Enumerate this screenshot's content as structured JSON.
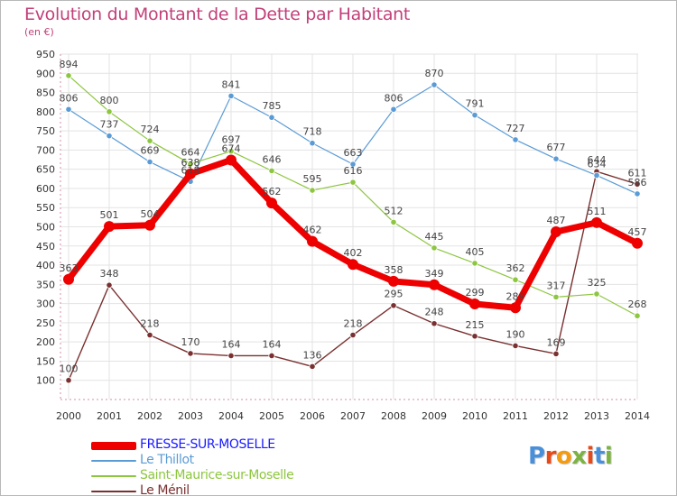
{
  "title": "Evolution du Montant de la Dette par Habitant",
  "subtitle": "(en €)",
  "logo": {
    "text": "Proxiti",
    "letters": [
      {
        "ch": "P",
        "color": "#4a90d9"
      },
      {
        "ch": "r",
        "color": "#e64a19"
      },
      {
        "ch": "o",
        "color": "#f39c12"
      },
      {
        "ch": "x",
        "color": "#7cb342"
      },
      {
        "ch": "i",
        "color": "#e64a19"
      },
      {
        "ch": "t",
        "color": "#4a90d9"
      },
      {
        "ch": "i",
        "color": "#7cb342"
      }
    ]
  },
  "chart_data": {
    "type": "line",
    "x": [
      2000,
      2001,
      2002,
      2003,
      2004,
      2005,
      2006,
      2007,
      2008,
      2009,
      2010,
      2011,
      2012,
      2013,
      2014
    ],
    "ylim": [
      50,
      950
    ],
    "yticks": [
      100,
      150,
      200,
      250,
      300,
      350,
      400,
      450,
      500,
      550,
      600,
      650,
      700,
      750,
      800,
      850,
      900,
      950
    ],
    "grid": true,
    "legend_position": "bottom-left",
    "series": [
      {
        "name": "FRESSE-SUR-MOSELLE",
        "color": "#ee0000",
        "label_color": "#1a1aff",
        "values": [
          363,
          501,
          504,
          638,
          674,
          562,
          462,
          402,
          358,
          349,
          299,
          289,
          487,
          511,
          457
        ],
        "data_labels": [
          "363",
          "501",
          "504",
          "638",
          "674",
          "562",
          "462",
          "402",
          "358",
          "349",
          "299",
          "289",
          "487",
          "511",
          "457"
        ]
      },
      {
        "name": "Le Thillot",
        "color": "#5b9bd5",
        "label_color": "#5b9bd5",
        "values": [
          806,
          737,
          669,
          618,
          841,
          785,
          718,
          663,
          806,
          870,
          791,
          727,
          677,
          634,
          586
        ],
        "data_labels": [
          "806",
          "737",
          "669",
          "618",
          "841",
          "785",
          "718",
          "663",
          "806",
          "870",
          "791",
          "727",
          "677",
          "634",
          "586"
        ]
      },
      {
        "name": "Saint-Maurice-sur-Moselle",
        "color": "#8dc63f",
        "label_color": "#8dc63f",
        "values": [
          894,
          800,
          724,
          664,
          697,
          646,
          595,
          616,
          512,
          445,
          405,
          362,
          317,
          325,
          268
        ],
        "data_labels": [
          "894",
          "800",
          "724",
          "664",
          "697",
          "646",
          "595",
          "616",
          "512",
          "445",
          "405",
          "362",
          "317",
          "325",
          "268"
        ]
      },
      {
        "name": "Le Ménil",
        "color": "#7a3030",
        "label_color": "#7a3030",
        "values": [
          100,
          348,
          218,
          170,
          164,
          164,
          136,
          218,
          295,
          248,
          215,
          190,
          169,
          644,
          611
        ],
        "data_labels": [
          "100",
          "348",
          "218",
          "170",
          "164",
          "164",
          "136",
          "218",
          "295",
          "248",
          "215",
          "190",
          "169",
          "644",
          "611"
        ]
      }
    ]
  }
}
